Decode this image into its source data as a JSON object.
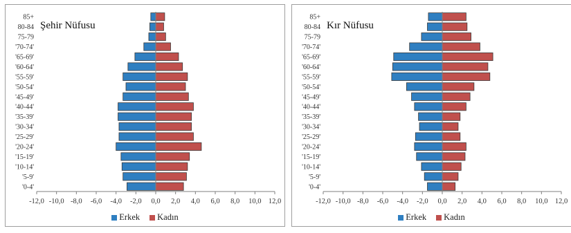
{
  "legend": {
    "male_label": "Erkek",
    "female_label": "Kadın"
  },
  "colors": {
    "male": "#2f7fc1",
    "female": "#c0504d",
    "bar_border": "#3a3a3a",
    "axis": "#7f7f7f"
  },
  "chart_data": [
    {
      "type": "bar",
      "orientation": "horizontal",
      "title": "Şehir Nüfusu",
      "categories": [
        "85+",
        "80-84",
        "75-79",
        "'70-74'",
        "'65-69'",
        "'60-64'",
        "'55-59'",
        "'50-54'",
        "'45-49'",
        "'40-44'",
        "'35-39'",
        "'30-34'",
        "'25-29'",
        "'20-24'",
        "'15-19'",
        "'10-14'",
        "'5-9'",
        "'0-4'"
      ],
      "series": [
        {
          "name": "Erkek",
          "values": [
            -0.5,
            -0.6,
            -0.7,
            -1.2,
            -2.1,
            -2.8,
            -3.3,
            -3.0,
            -3.3,
            -3.8,
            -3.8,
            -3.7,
            -3.7,
            -4.0,
            -3.5,
            -3.4,
            -3.3,
            -2.9
          ]
        },
        {
          "name": "Kadın",
          "values": [
            0.9,
            0.8,
            1.0,
            1.5,
            2.3,
            2.7,
            3.2,
            3.0,
            3.3,
            3.8,
            3.6,
            3.6,
            3.8,
            4.6,
            3.4,
            3.2,
            3.1,
            2.8
          ]
        }
      ],
      "xlim": [
        -12,
        12
      ],
      "xticks": [
        "-12,0",
        "-10,0",
        "-8,0",
        "-6,0",
        "-4,0",
        "-2,0",
        "0,0",
        "2,0",
        "4,0",
        "6,0",
        "8,0",
        "10,0",
        "12,0"
      ],
      "legend_position": "bottom"
    },
    {
      "type": "bar",
      "orientation": "horizontal",
      "title": "Kır Nüfusu",
      "categories": [
        "85+",
        "80-84",
        "75-79",
        "'70-74'",
        "'65-69'",
        "'60-64'",
        "'55-59'",
        "'50-54'",
        "'45-49'",
        "'40-44'",
        "'35-39'",
        "'30-34'",
        "'25-29'",
        "'20-24'",
        "'15-19'",
        "'10-14'",
        "'5-9'",
        "'0-4'"
      ],
      "series": [
        {
          "name": "Erkek",
          "values": [
            -1.4,
            -1.5,
            -2.1,
            -3.3,
            -4.9,
            -5.0,
            -5.1,
            -3.6,
            -3.1,
            -2.8,
            -2.4,
            -2.3,
            -2.7,
            -2.8,
            -2.6,
            -2.1,
            -1.8,
            -1.5
          ]
        },
        {
          "name": "Kadın",
          "values": [
            2.4,
            2.5,
            2.9,
            3.8,
            5.1,
            4.6,
            4.8,
            3.2,
            2.8,
            2.4,
            1.8,
            1.6,
            1.8,
            2.4,
            2.3,
            1.9,
            1.6,
            1.3
          ]
        }
      ],
      "xlim": [
        -12,
        12
      ],
      "xticks": [
        "-12,0",
        "-10,0",
        "-8,0",
        "-6,0",
        "-4,0",
        "-2,0",
        "0,0",
        "2,0",
        "4,0",
        "6,0",
        "8,0",
        "10,0",
        "12,0"
      ],
      "legend_position": "bottom"
    }
  ]
}
